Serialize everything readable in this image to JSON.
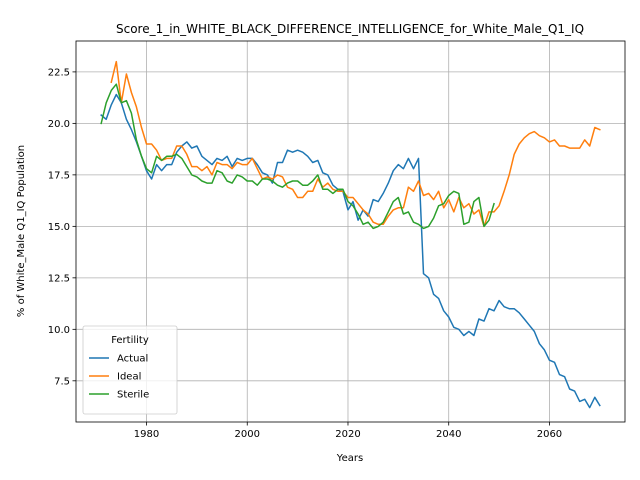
{
  "chart_data": {
    "type": "line",
    "title": "Score_1_in_WHITE_BLACK_DIFFERENCE_INTELLIGENCE_for_White_Male_Q1_IQ",
    "xlabel": "Years",
    "ylabel": "% of White_Male Q1_IQ Population",
    "xlim": [
      1966,
      2075
    ],
    "ylim": [
      5.5,
      24.0
    ],
    "xticks": [
      1980,
      2000,
      2020,
      2040,
      2060
    ],
    "yticks": [
      7.5,
      10.0,
      12.5,
      15.0,
      17.5,
      20.0,
      22.5
    ],
    "grid": true,
    "legend": {
      "title": "Fertility",
      "placement": "lower-left"
    },
    "series": [
      {
        "name": "Actual",
        "color": "#1f77b4",
        "x": [
          1971,
          1972,
          1973,
          1974,
          1975,
          1976,
          1977,
          1978,
          1979,
          1980,
          1981,
          1982,
          1983,
          1984,
          1985,
          1986,
          1987,
          1988,
          1989,
          1990,
          1991,
          1992,
          1993,
          1994,
          1995,
          1996,
          1997,
          1998,
          1999,
          2000,
          2001,
          2002,
          2003,
          2004,
          2005,
          2006,
          2007,
          2008,
          2009,
          2010,
          2011,
          2012,
          2013,
          2014,
          2015,
          2016,
          2017,
          2018,
          2019,
          2020,
          2021,
          2022,
          2023,
          2024,
          2025,
          2026,
          2027,
          2028,
          2029,
          2030,
          2031,
          2032,
          2033,
          2034,
          2035,
          2036,
          2037,
          2038,
          2039,
          2040,
          2041,
          2042,
          2043,
          2044,
          2045,
          2046,
          2047,
          2048,
          2049,
          2050,
          2051,
          2052,
          2053,
          2054,
          2055,
          2056,
          2057,
          2058,
          2059,
          2060,
          2061,
          2062,
          2063,
          2064,
          2065,
          2066,
          2067,
          2068,
          2069,
          2070
        ],
        "values": [
          20.4,
          20.2,
          20.9,
          21.4,
          21.0,
          20.2,
          19.7,
          19.1,
          18.4,
          17.7,
          17.3,
          18.0,
          17.7,
          18.0,
          18.0,
          18.6,
          18.9,
          19.1,
          18.8,
          18.9,
          18.4,
          18.2,
          18.0,
          18.3,
          18.2,
          18.4,
          17.9,
          18.3,
          18.2,
          18.3,
          18.3,
          18.0,
          17.6,
          17.5,
          17.1,
          18.1,
          18.1,
          18.7,
          18.6,
          18.7,
          18.6,
          18.4,
          18.1,
          18.2,
          17.6,
          17.5,
          17.0,
          16.8,
          16.7,
          15.8,
          16.2,
          15.3,
          15.8,
          15.5,
          16.3,
          16.2,
          16.6,
          17.1,
          17.7,
          18.0,
          17.8,
          18.3,
          17.8,
          18.3,
          12.7,
          12.5,
          11.7,
          11.5,
          10.9,
          10.6,
          10.1,
          10.0,
          9.7,
          9.9,
          9.7,
          10.5,
          10.4,
          11.0,
          10.9,
          11.4,
          11.1,
          11.0,
          11.0,
          10.8,
          10.5,
          10.2,
          9.9,
          9.3,
          9.0,
          8.5,
          8.4,
          7.8,
          7.7,
          7.1,
          7.0,
          6.5,
          6.6,
          6.2,
          6.7,
          6.3
        ]
      },
      {
        "name": "Ideal",
        "color": "#ff7f0e",
        "x": [
          1973,
          1974,
          1975,
          1976,
          1977,
          1978,
          1979,
          1980,
          1981,
          1982,
          1983,
          1984,
          1985,
          1986,
          1987,
          1988,
          1989,
          1990,
          1991,
          1992,
          1993,
          1994,
          1995,
          1996,
          1997,
          1998,
          1999,
          2000,
          2001,
          2002,
          2003,
          2004,
          2005,
          2006,
          2007,
          2008,
          2009,
          2010,
          2011,
          2012,
          2013,
          2014,
          2015,
          2016,
          2017,
          2018,
          2019,
          2020,
          2021,
          2022,
          2023,
          2024,
          2025,
          2026,
          2027,
          2028,
          2029,
          2030,
          2031,
          2032,
          2033,
          2034,
          2035,
          2036,
          2037,
          2038,
          2039,
          2040,
          2041,
          2042,
          2043,
          2044,
          2045,
          2046,
          2047,
          2048,
          2049,
          2050,
          2051,
          2052,
          2053,
          2054,
          2055,
          2056,
          2057,
          2058,
          2059,
          2060,
          2061,
          2062,
          2063,
          2064,
          2065,
          2066,
          2067,
          2068,
          2069,
          2070
        ],
        "values": [
          22.0,
          23.0,
          21.0,
          22.4,
          21.5,
          20.8,
          19.8,
          19.0,
          19.0,
          18.7,
          18.2,
          18.3,
          18.3,
          18.9,
          18.9,
          18.5,
          17.9,
          17.9,
          17.7,
          17.9,
          17.5,
          18.1,
          18.0,
          18.0,
          17.8,
          18.1,
          18.0,
          18.0,
          18.3,
          17.8,
          17.3,
          17.4,
          17.3,
          17.5,
          17.4,
          16.9,
          16.8,
          16.4,
          16.4,
          16.7,
          16.7,
          17.3,
          16.9,
          17.1,
          16.8,
          16.7,
          16.7,
          16.4,
          16.4,
          16.1,
          15.8,
          15.6,
          15.2,
          15.1,
          15.1,
          15.5,
          15.8,
          15.9,
          15.9,
          16.9,
          16.7,
          17.2,
          16.5,
          16.6,
          16.3,
          16.7,
          15.9,
          16.3,
          15.7,
          16.4,
          15.9,
          16.1,
          15.6,
          15.8,
          15.0,
          15.7,
          15.7,
          16.0,
          16.7,
          17.5,
          18.5,
          19.0,
          19.3,
          19.5,
          19.6,
          19.4,
          19.3,
          19.1,
          19.2,
          18.9,
          18.9,
          18.8,
          18.8,
          18.8,
          19.2,
          18.9,
          19.8,
          19.7
        ]
      },
      {
        "name": "Sterile",
        "color": "#2ca02c",
        "x": [
          1971,
          1972,
          1973,
          1974,
          1975,
          1976,
          1977,
          1978,
          1979,
          1980,
          1981,
          1982,
          1983,
          1984,
          1985,
          1986,
          1987,
          1988,
          1989,
          1990,
          1991,
          1992,
          1993,
          1994,
          1995,
          1996,
          1997,
          1998,
          1999,
          2000,
          2001,
          2002,
          2003,
          2004,
          2005,
          2006,
          2007,
          2008,
          2009,
          2010,
          2011,
          2012,
          2013,
          2014,
          2015,
          2016,
          2017,
          2018,
          2019,
          2020,
          2021,
          2022,
          2023,
          2024,
          2025,
          2026,
          2027,
          2028,
          2029,
          2030,
          2031,
          2032,
          2033,
          2034,
          2035,
          2036,
          2037,
          2038,
          2039,
          2040,
          2041,
          2042,
          2043,
          2044,
          2045,
          2046,
          2047,
          2048,
          2049
        ],
        "values": [
          20.0,
          21.0,
          21.6,
          21.9,
          21.0,
          21.1,
          20.5,
          19.2,
          18.4,
          17.8,
          17.6,
          18.4,
          18.2,
          18.4,
          18.4,
          18.5,
          18.3,
          17.9,
          17.5,
          17.4,
          17.2,
          17.1,
          17.1,
          17.7,
          17.6,
          17.2,
          17.1,
          17.5,
          17.4,
          17.2,
          17.2,
          17.0,
          17.3,
          17.3,
          17.2,
          17.0,
          16.9,
          17.1,
          17.2,
          17.2,
          17.0,
          17.0,
          17.2,
          17.5,
          16.8,
          16.8,
          16.6,
          16.8,
          16.8,
          16.2,
          16.0,
          15.6,
          15.1,
          15.2,
          14.9,
          15.0,
          15.2,
          15.7,
          16.2,
          16.4,
          15.6,
          15.7,
          15.2,
          15.1,
          14.9,
          15.0,
          15.4,
          16.0,
          16.1,
          16.5,
          16.7,
          16.6,
          15.1,
          15.2,
          16.2,
          16.4,
          15.0,
          15.3,
          16.1
        ]
      }
    ]
  }
}
